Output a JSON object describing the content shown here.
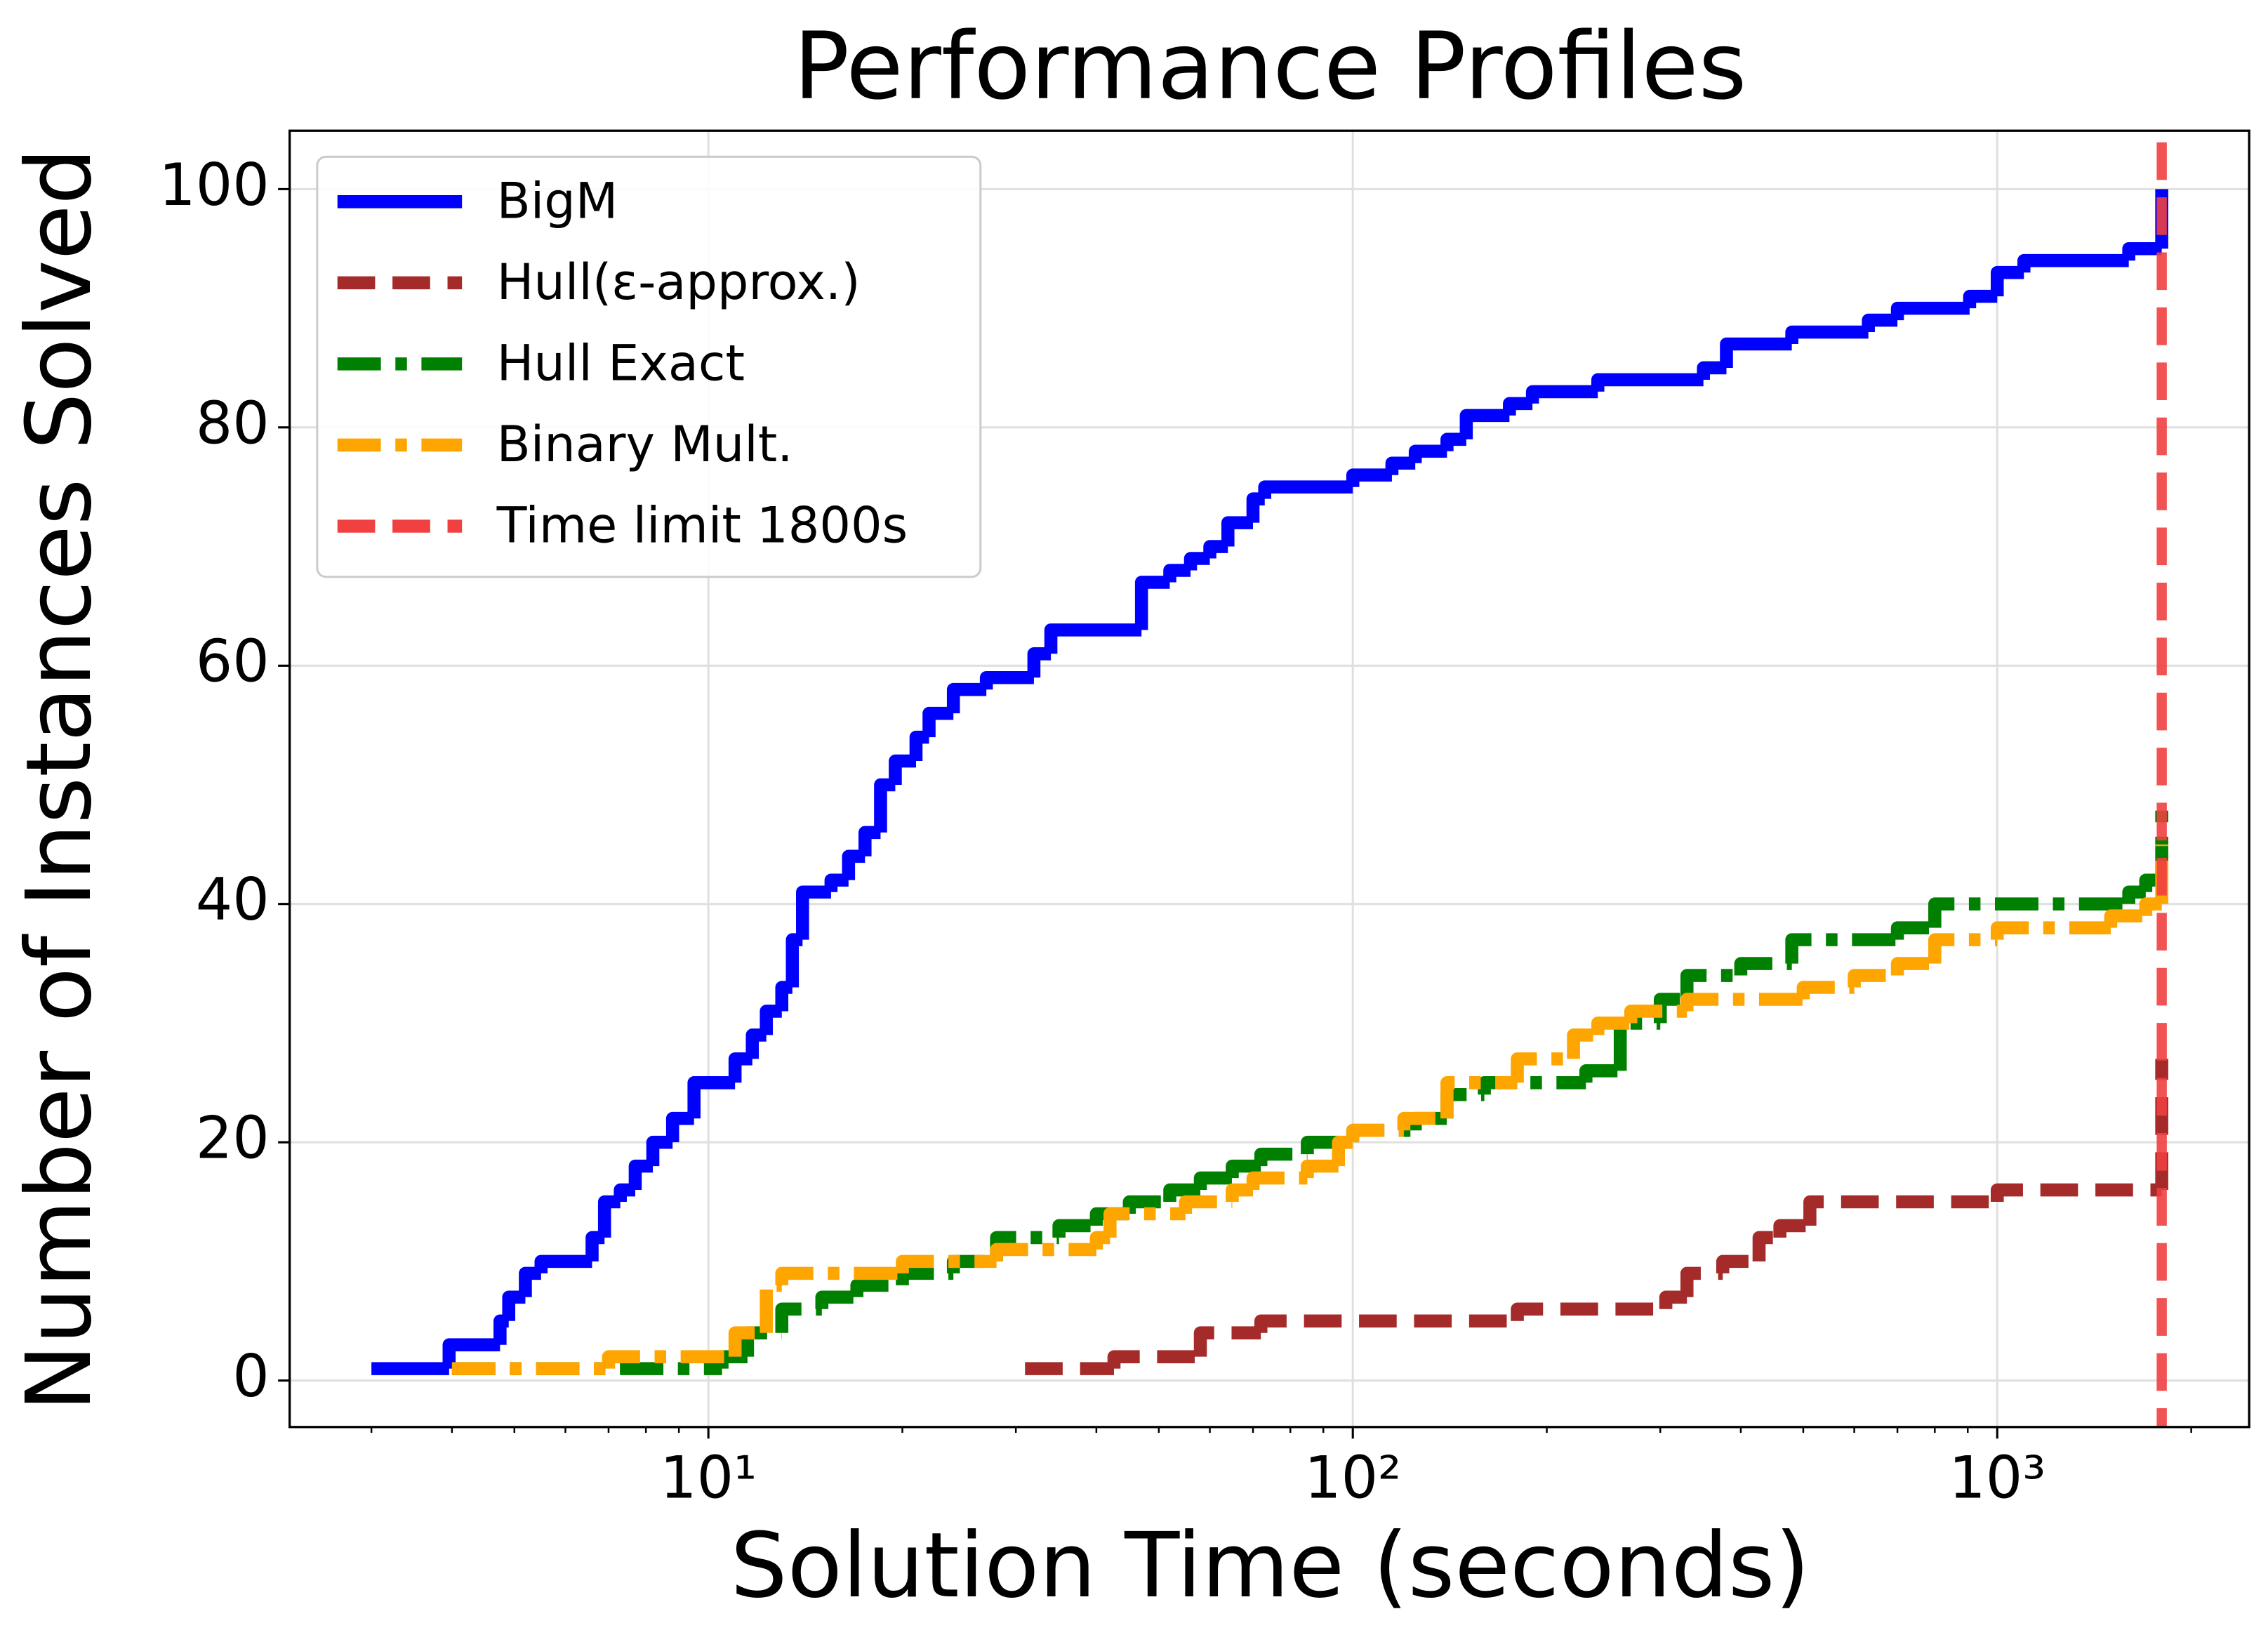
{
  "chart_data": {
    "type": "step",
    "title": "Performance Profiles",
    "x_label": "Solution Time (seconds)",
    "y_label": "Number of Instances Solved",
    "xscale": "log",
    "xlim": [
      2.24,
      2460
    ],
    "ylim": [
      -3.9,
      104.9
    ],
    "xticks": [
      {
        "value": 10,
        "label": "10¹"
      },
      {
        "value": 100,
        "label": "10²"
      },
      {
        "value": 1000,
        "label": "10³"
      }
    ],
    "xminorticks": [
      3,
      4,
      5,
      6,
      7,
      8,
      9,
      20,
      30,
      40,
      50,
      60,
      70,
      80,
      90,
      200,
      300,
      400,
      500,
      600,
      700,
      800,
      900,
      2000
    ],
    "yticks": [
      0,
      20,
      40,
      60,
      80,
      100
    ],
    "grid": true,
    "legend": "upper left",
    "series": [
      {
        "name": "BigM",
        "color": "#0000ff",
        "dash": "solid",
        "x": [
          3.0,
          3.96,
          4.75,
          4.9,
          5.2,
          5.5,
          6.6,
          6.9,
          7.3,
          7.7,
          8.2,
          8.8,
          9.5,
          11,
          11.7,
          12.3,
          13,
          13.5,
          14,
          15.5,
          16.5,
          17.5,
          18.5,
          19.5,
          21,
          22,
          24,
          27,
          32,
          34,
          47,
          52,
          56,
          60,
          64,
          70,
          73,
          100,
          115,
          125,
          140,
          150,
          175,
          190,
          240,
          350,
          380,
          480,
          631,
          700,
          906,
          1000,
          1100,
          1600,
          1800
        ],
        "values": [
          1,
          3,
          5,
          7,
          9,
          10,
          12,
          15,
          16,
          18,
          20,
          22,
          25,
          27,
          29,
          31,
          33,
          37,
          41,
          42,
          44,
          46,
          50,
          52,
          54,
          56,
          58,
          59,
          61,
          63,
          67,
          68,
          69,
          70,
          72,
          74,
          75,
          76,
          77,
          78,
          79,
          81,
          82,
          83,
          84,
          85,
          87,
          88,
          89,
          90,
          91,
          93,
          94,
          95,
          100
        ]
      },
      {
        "name": "Hull(ε-approx.)",
        "color": "#a52a2a",
        "dash": "dashed",
        "x": [
          31,
          42.6,
          58,
          72,
          180,
          306,
          330,
          375,
          427,
          460,
          512,
          1000,
          1800
        ],
        "values": [
          1,
          2,
          4,
          5,
          6,
          7,
          9,
          10,
          12,
          13,
          15,
          16,
          27
        ]
      },
      {
        "name": "Hull Exact",
        "color": "#008000",
        "dash": "dashdot",
        "x": [
          4,
          10.5,
          11.5,
          13,
          15,
          17,
          20,
          24,
          28,
          35,
          40,
          45,
          52,
          58,
          65,
          72,
          85,
          100,
          125,
          140,
          160,
          230,
          260,
          300,
          330,
          400,
          480,
          700,
          800,
          1600,
          1700,
          1800
        ],
        "values": [
          1,
          2,
          4,
          6,
          7,
          8,
          9,
          10,
          12,
          13,
          14,
          15,
          16,
          17,
          18,
          19,
          20,
          21,
          22,
          24,
          25,
          26,
          30,
          32,
          34,
          35,
          37,
          38,
          40,
          41,
          42,
          49
        ]
      },
      {
        "name": "Binary Mult.",
        "color": "#ffa500",
        "dash": "dashdot",
        "x": [
          4,
          7,
          11,
          12.3,
          13,
          20,
          28,
          40,
          42,
          55,
          65,
          70,
          85,
          95,
          100,
          120,
          140,
          180,
          220,
          240,
          270,
          330,
          500,
          600,
          700,
          800,
          1000,
          1500,
          1700,
          1800
        ],
        "values": [
          1,
          2,
          4,
          8,
          9,
          10,
          11,
          12,
          14,
          15,
          16,
          17,
          18,
          20,
          21,
          22,
          25,
          27,
          29,
          30,
          31,
          32,
          33,
          34,
          35,
          37,
          38,
          39,
          40,
          45
        ]
      }
    ],
    "vlines": [
      {
        "name": "Time limit 1800s",
        "x": 1800,
        "color": "#f04040"
      }
    ]
  }
}
